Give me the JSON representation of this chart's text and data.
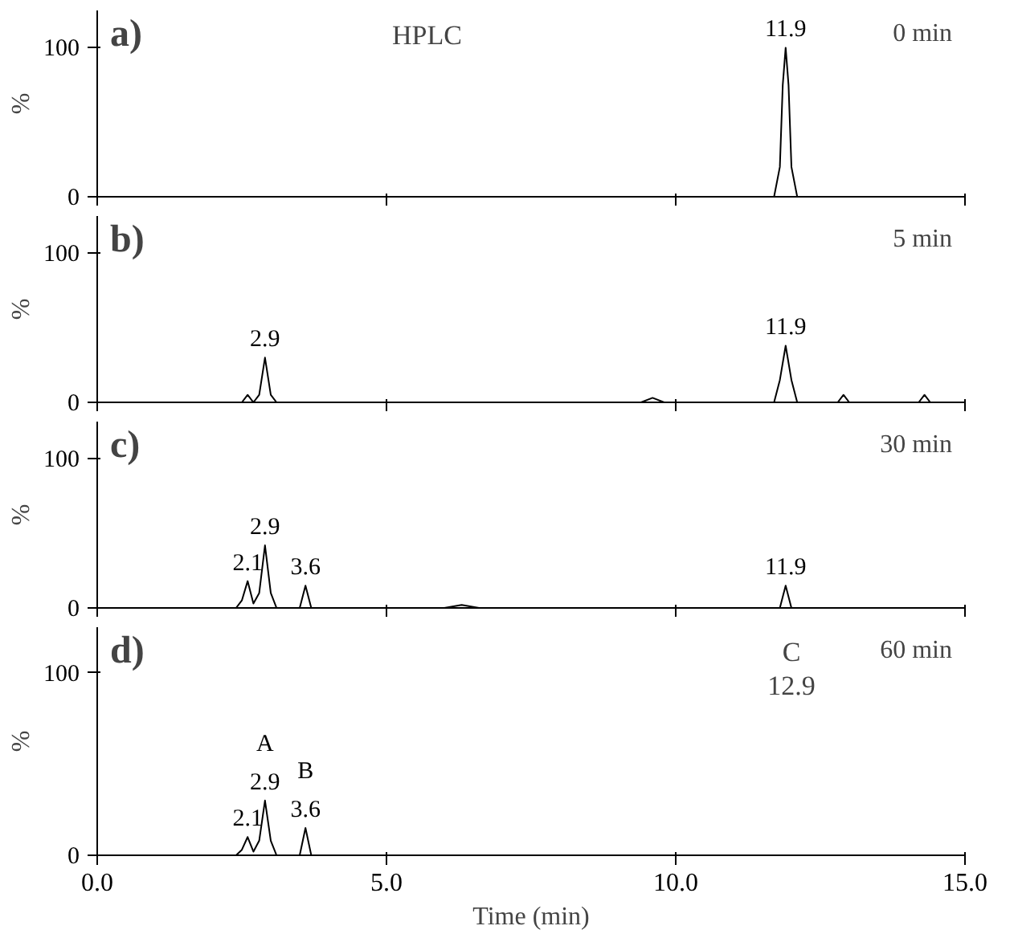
{
  "chart_data": [
    {
      "type": "line",
      "title": "a)",
      "subtitle": "0 min",
      "ylabel": "%",
      "xlim": [
        0,
        15
      ],
      "ylim": [
        0,
        125
      ],
      "yticks": [
        0,
        100
      ],
      "xticks": [
        {
          "value": 0,
          "label": null
        },
        {
          "value": 5,
          "label": null
        },
        {
          "value": 10,
          "label": null
        },
        {
          "value": 15,
          "label": null
        }
      ],
      "tick_labels": "y",
      "grid": false,
      "series": [
        {
          "color": "#000000",
          "x": [
            0,
            11.7,
            11.8,
            11.85,
            11.9,
            11.95,
            12.0,
            12.1,
            15
          ],
          "values": [
            0,
            0,
            20,
            75,
            100,
            75,
            20,
            0,
            0
          ]
        }
      ],
      "annotations": [
        "HPLC",
        {
          "text": "11.9",
          "x": 11.9,
          "y": 100
        }
      ]
    },
    {
      "type": "line",
      "title": "b)",
      "subtitle": "5 min",
      "ylabel": "%",
      "xlim": [
        0,
        15
      ],
      "ylim": [
        0,
        125
      ],
      "yticks": [
        0,
        100
      ],
      "xticks": [
        {
          "value": 0,
          "label": null
        },
        {
          "value": 5,
          "label": null
        },
        {
          "value": 10,
          "label": null
        },
        {
          "value": 15,
          "label": null
        }
      ],
      "tick_labels": "y",
      "grid": false,
      "series": [
        {
          "color": "#000000",
          "x": [
            0,
            2.5,
            2.6,
            2.7,
            2.8,
            2.9,
            3.0,
            3.1,
            9.4,
            9.6,
            9.8,
            11.7,
            11.8,
            11.9,
            12.0,
            12.1,
            12.8,
            12.9,
            13.0,
            14.2,
            14.3,
            14.4,
            15
          ],
          "values": [
            0,
            0,
            5,
            0,
            5,
            30,
            5,
            0,
            0,
            3,
            0,
            0,
            15,
            38,
            15,
            0,
            0,
            5,
            0,
            0,
            5,
            0,
            0
          ]
        }
      ],
      "annotations": [
        {
          "text": "2.9",
          "x": 2.9,
          "y": 30
        },
        {
          "text": "11.9",
          "x": 11.9,
          "y": 38
        }
      ]
    },
    {
      "type": "line",
      "title": "c)",
      "subtitle": "30 min",
      "ylabel": "%",
      "xlim": [
        0,
        15
      ],
      "ylim": [
        0,
        125
      ],
      "yticks": [
        0,
        100
      ],
      "xticks": [
        {
          "value": 0,
          "label": null
        },
        {
          "value": 5,
          "label": null
        },
        {
          "value": 10,
          "label": null
        },
        {
          "value": 15,
          "label": null
        }
      ],
      "tick_labels": "y",
      "grid": false,
      "series": [
        {
          "color": "#000000",
          "x": [
            0,
            2.4,
            2.5,
            2.6,
            2.7,
            2.8,
            2.9,
            3.0,
            3.1,
            3.5,
            3.6,
            3.7,
            6.0,
            6.3,
            6.6,
            11.8,
            11.9,
            12.0,
            15
          ],
          "values": [
            0,
            0,
            5,
            18,
            3,
            10,
            42,
            10,
            0,
            0,
            15,
            0,
            0,
            2,
            0,
            0,
            15,
            0,
            0
          ]
        }
      ],
      "annotations": [
        {
          "text": "2.1",
          "x": 2.6,
          "y": 18
        },
        {
          "text": "2.9",
          "x": 2.9,
          "y": 42
        },
        {
          "text": "3.6",
          "x": 3.6,
          "y": 15
        },
        {
          "text": "11.9",
          "x": 11.9,
          "y": 15
        }
      ]
    },
    {
      "type": "line",
      "title": "d)",
      "subtitle": "60 min",
      "ylabel": "%",
      "xlabel": "Time (min)",
      "xlim": [
        0,
        15
      ],
      "ylim": [
        0,
        125
      ],
      "yticks": [
        0,
        100
      ],
      "xticks": [
        {
          "value": 0,
          "label": "0.0"
        },
        {
          "value": 5,
          "label": "5.0"
        },
        {
          "value": 10,
          "label": "10.0"
        },
        {
          "value": 15,
          "label": "15.0"
        }
      ],
      "grid": false,
      "series": [
        {
          "color": "#000000",
          "x": [
            0,
            2.4,
            2.5,
            2.6,
            2.7,
            2.8,
            2.9,
            3.0,
            3.1,
            3.5,
            3.6,
            3.7,
            15
          ],
          "values": [
            0,
            0,
            3,
            10,
            2,
            8,
            30,
            8,
            0,
            0,
            15,
            0,
            0
          ]
        }
      ],
      "annotations": [
        {
          "text": "2.1",
          "x": 2.6,
          "y": 10
        },
        {
          "text": "2.9",
          "x": 2.9,
          "y": 30
        },
        {
          "text": "3.6",
          "x": 3.6,
          "y": 15
        },
        {
          "text": "A",
          "x": 2.9,
          "y": 30
        },
        {
          "text": "B",
          "x": 3.6,
          "y": 15
        },
        "C",
        "12.9"
      ]
    }
  ]
}
